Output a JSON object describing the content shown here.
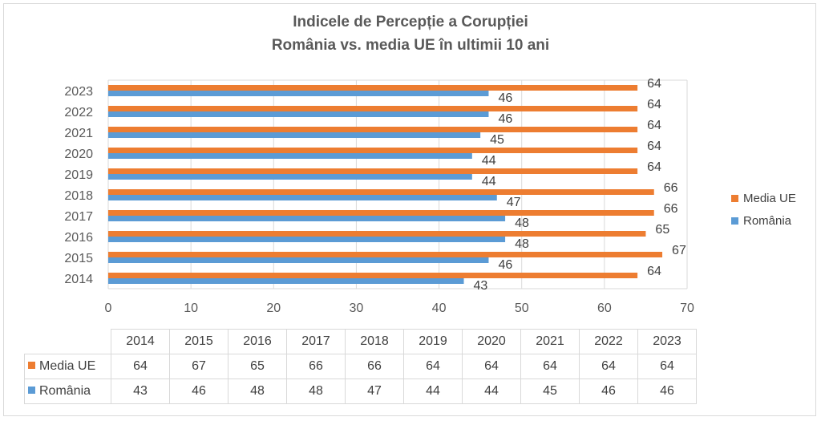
{
  "chart_data": {
    "type": "bar",
    "orientation": "horizontal",
    "title_line1": "Indicele de Percepție a Corupției",
    "title_line2": "România vs. media UE în ultimii 10 ani",
    "categories": [
      "2014",
      "2015",
      "2016",
      "2017",
      "2018",
      "2019",
      "2020",
      "2021",
      "2022",
      "2023"
    ],
    "series": [
      {
        "name": "Media UE",
        "color": "#ED7D31",
        "values": [
          64,
          67,
          65,
          66,
          66,
          64,
          64,
          64,
          64,
          64
        ]
      },
      {
        "name": "România",
        "color": "#5B9BD5",
        "values": [
          43,
          46,
          48,
          48,
          47,
          44,
          44,
          45,
          46,
          46
        ]
      }
    ],
    "xlim": [
      0,
      70
    ],
    "xticks": [
      "0",
      "10",
      "20",
      "30",
      "40",
      "50",
      "60",
      "70"
    ],
    "grid": true,
    "legend_position": "right",
    "data_table": true
  }
}
